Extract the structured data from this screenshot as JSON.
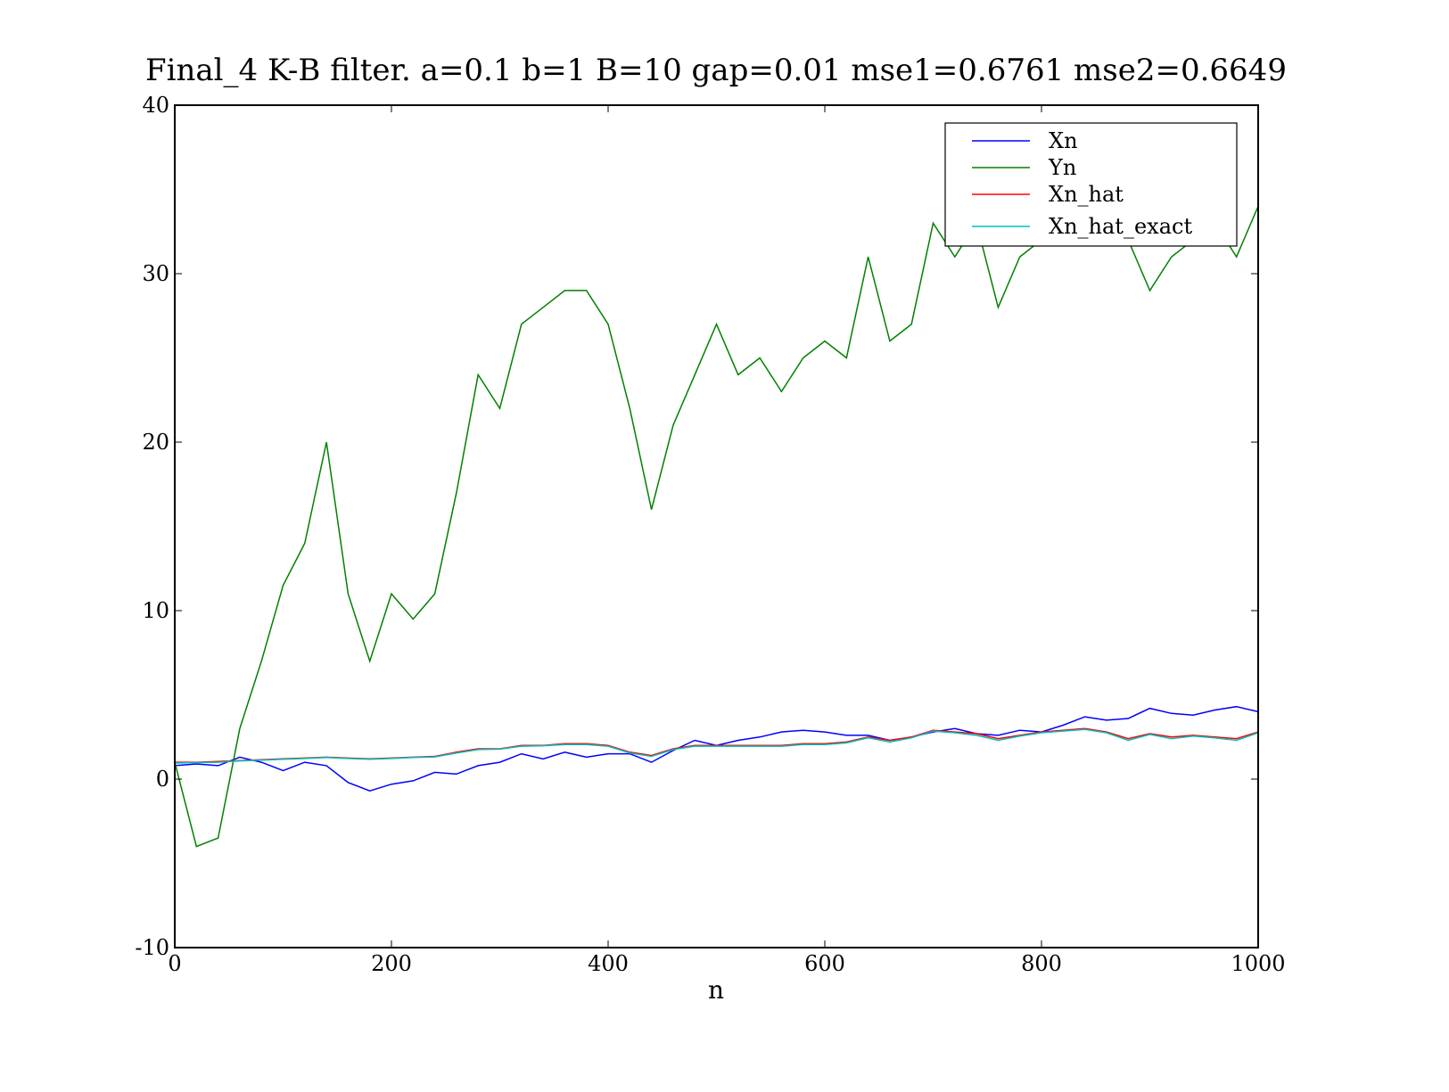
{
  "chart_data": {
    "type": "line",
    "title": "Final_4 K-B filter. a=0.1 b=1 B=10 gap=0.01  mse1=0.6761 mse2=0.6649",
    "xlabel": "n",
    "xlim": [
      0,
      1000
    ],
    "ylim": [
      -10,
      40
    ],
    "xticks": [
      0,
      200,
      400,
      600,
      800,
      1000
    ],
    "yticks": [
      -10,
      0,
      10,
      20,
      30,
      40
    ],
    "legend": "upper right",
    "x": [
      0,
      20,
      40,
      60,
      80,
      100,
      120,
      140,
      160,
      180,
      200,
      220,
      240,
      260,
      280,
      300,
      320,
      340,
      360,
      380,
      400,
      420,
      440,
      460,
      480,
      500,
      520,
      540,
      560,
      580,
      600,
      620,
      640,
      660,
      680,
      700,
      720,
      740,
      760,
      780,
      800,
      820,
      840,
      860,
      880,
      900,
      920,
      940,
      960,
      980,
      1000
    ],
    "series": [
      {
        "name": "Xn",
        "color": "#0000ff",
        "values": [
          0.8,
          0.9,
          0.8,
          1.3,
          1.0,
          0.5,
          1.0,
          0.8,
          -0.2,
          -0.7,
          -0.3,
          -0.1,
          0.4,
          0.3,
          0.8,
          1.0,
          1.5,
          1.2,
          1.6,
          1.3,
          1.5,
          1.5,
          1.0,
          1.7,
          2.3,
          2.0,
          2.3,
          2.5,
          2.8,
          2.9,
          2.8,
          2.6,
          2.6,
          2.3,
          2.5,
          2.8,
          3.0,
          2.7,
          2.6,
          2.9,
          2.8,
          3.2,
          3.7,
          3.5,
          3.6,
          4.2,
          3.9,
          3.8,
          4.1,
          4.3,
          4.0
        ]
      },
      {
        "name": "Yn",
        "color": "#008000",
        "values": [
          1,
          -4,
          -3.5,
          3,
          7,
          11.5,
          14,
          20,
          11,
          7,
          11,
          9.5,
          11,
          17,
          24,
          22,
          27,
          28,
          29,
          29,
          27,
          22,
          16,
          21,
          24,
          27,
          24,
          25,
          23,
          25,
          26,
          25,
          31,
          26,
          27,
          33,
          31,
          33,
          28,
          31,
          32,
          33,
          32,
          34,
          32,
          29,
          31,
          32,
          33,
          31,
          34
        ]
      },
      {
        "name": "Xn_hat",
        "color": "#ff0000",
        "values": [
          1.0,
          1.0,
          1.05,
          1.1,
          1.15,
          1.2,
          1.25,
          1.3,
          1.25,
          1.2,
          1.25,
          1.3,
          1.35,
          1.6,
          1.8,
          1.8,
          2.0,
          2.0,
          2.1,
          2.1,
          2.0,
          1.6,
          1.4,
          1.8,
          2.0,
          2.0,
          2.0,
          2.0,
          2.0,
          2.1,
          2.1,
          2.2,
          2.5,
          2.3,
          2.5,
          2.9,
          2.8,
          2.7,
          2.4,
          2.6,
          2.8,
          2.9,
          3.0,
          2.8,
          2.4,
          2.7,
          2.5,
          2.6,
          2.5,
          2.4,
          2.8
        ]
      },
      {
        "name": "Xn_hat_exact",
        "color": "#00bfbf",
        "values": [
          0.95,
          0.98,
          1.0,
          1.08,
          1.12,
          1.18,
          1.22,
          1.28,
          1.22,
          1.18,
          1.22,
          1.28,
          1.32,
          1.55,
          1.75,
          1.78,
          1.95,
          1.98,
          2.05,
          2.05,
          1.95,
          1.55,
          1.35,
          1.75,
          1.95,
          1.95,
          1.95,
          1.95,
          1.95,
          2.05,
          2.05,
          2.15,
          2.45,
          2.2,
          2.45,
          2.85,
          2.75,
          2.6,
          2.3,
          2.55,
          2.75,
          2.85,
          2.95,
          2.75,
          2.3,
          2.65,
          2.4,
          2.55,
          2.45,
          2.3,
          2.75
        ]
      }
    ]
  }
}
